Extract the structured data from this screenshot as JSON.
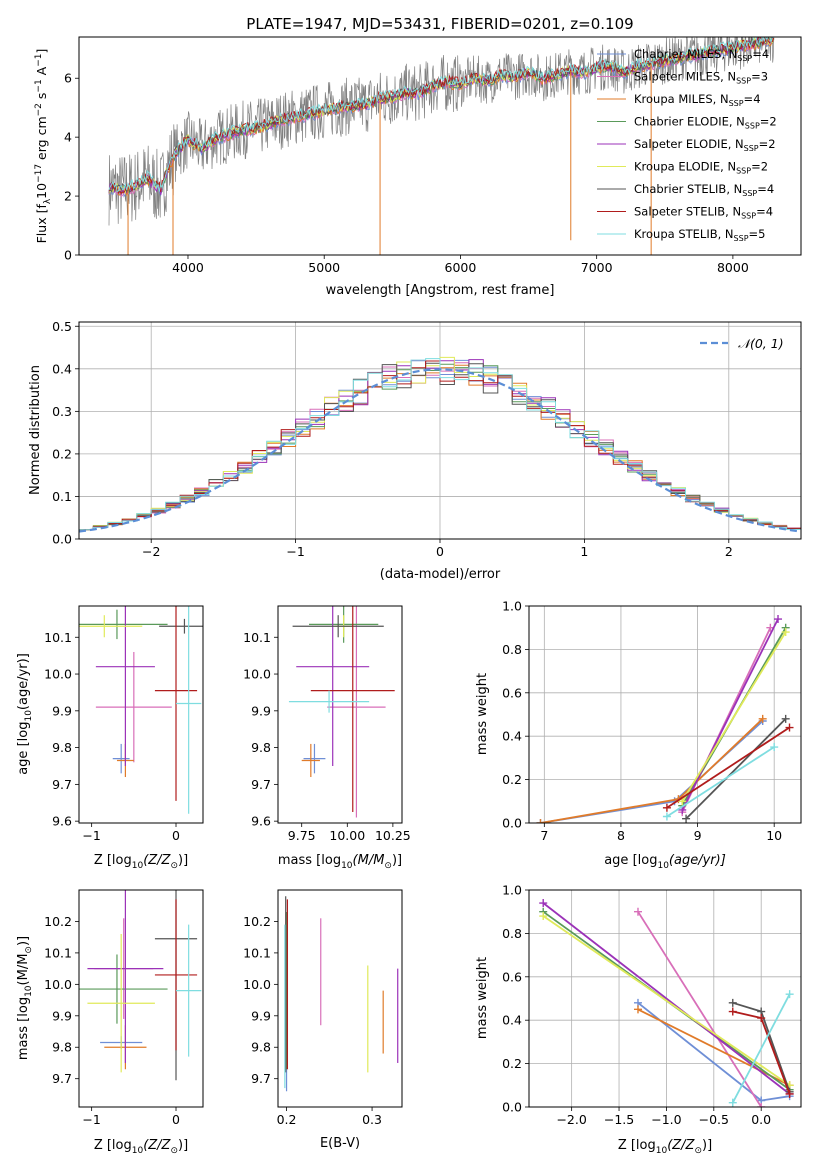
{
  "figure": {
    "title": "PLATE=1947, MJD=53431, FIBERID=0201, z=0.109"
  },
  "series_legend": [
    {
      "name": "Chabrier MILES",
      "nssp": "4",
      "color": "#6f8fd6"
    },
    {
      "name": "Salpeter MILES",
      "nssp": "3",
      "color": "#d86fb9"
    },
    {
      "name": "Kroupa MILES",
      "nssp": "4",
      "color": "#e07b2a"
    },
    {
      "name": "Chabrier ELODIE",
      "nssp": "2",
      "color": "#5a9a5a"
    },
    {
      "name": "Salpeter ELODIE",
      "nssp": "2",
      "color": "#9b32b8"
    },
    {
      "name": "Kroupa ELODIE",
      "nssp": "2",
      "color": "#e0ea5a"
    },
    {
      "name": "Chabrier STELIB",
      "nssp": "4",
      "color": "#555555"
    },
    {
      "name": "Salpeter STELIB",
      "nssp": "4",
      "color": "#b01c1c"
    },
    {
      "name": "Kroupa STELIB",
      "nssp": "5",
      "color": "#7fdde0"
    }
  ],
  "chart_data": [
    {
      "type": "line",
      "id": "spectrum",
      "xlabel": "wavelength [Angstrom, rest frame]",
      "ylabel_main": "Flux [f",
      "ylabel_sub": "λ",
      "ylabel_rest": "10",
      "ylabel_exp1": "−17",
      "ylabel_mid": " erg cm",
      "ylabel_exp2": "−2",
      "ylabel_mid2": " s",
      "ylabel_exp3": "−1",
      "ylabel_end": " A",
      "ylabel_exp4": "−1",
      "ylabel_close": "]",
      "xlim": [
        3200,
        8500
      ],
      "ylim": [
        0,
        7.4
      ],
      "xticks": [
        4000,
        5000,
        6000,
        7000,
        8000
      ],
      "yticks": [
        0,
        2,
        4,
        6
      ],
      "data_color": "#808080",
      "continuum": {
        "x": [
          3420,
          3500,
          3600,
          3700,
          3800,
          3850,
          3900,
          4000,
          4100,
          4200,
          4300,
          4400,
          4500,
          4600,
          4700,
          4800,
          4900,
          5000,
          5100,
          5200,
          5300,
          5400,
          5500,
          5600,
          5700,
          5800,
          5900,
          6000,
          6100,
          6200,
          6300,
          6400,
          6500,
          6600,
          6700,
          6800,
          6900,
          7000,
          7100,
          7200,
          7300,
          7400
        ],
        "y": [
          2.3,
          2.2,
          2.3,
          2.6,
          2.2,
          2.9,
          3.4,
          3.9,
          3.6,
          3.95,
          4.1,
          4.25,
          4.3,
          4.45,
          4.6,
          4.7,
          4.8,
          4.9,
          5.0,
          5.05,
          5.1,
          5.3,
          5.35,
          5.5,
          5.5,
          5.75,
          5.85,
          5.8,
          6.0,
          5.9,
          6.1,
          6.05,
          6.2,
          6.0,
          6.1,
          6.25,
          6.2,
          6.35,
          6.4,
          6.2,
          6.4,
          6.5
        ]
      },
      "legend_position": "upper-right"
    },
    {
      "type": "bar",
      "id": "residual-histogram",
      "xlabel": "(data-model)/error",
      "ylabel": "Normed distribution",
      "xlim": [
        -2.5,
        2.5
      ],
      "ylim": [
        0,
        0.51
      ],
      "xticks": [
        -2,
        -1,
        0,
        1,
        2
      ],
      "yticks": [
        0.0,
        0.1,
        0.2,
        0.3,
        0.4,
        0.5
      ],
      "bin_width": 0.1,
      "grid": true,
      "legend": {
        "label": "𝒩(0, 1)",
        "color": "#5b8ed6",
        "position": "upper-right"
      }
    },
    {
      "type": "scatter",
      "id": "age-vs-metallicity",
      "xlabel": "Z [log",
      "xlabel_sub": "10",
      "xlabel_tail": "(Z/Z",
      "xlabel_sun": "⊙",
      "xlabel_end": ")]",
      "ylabel": "age  [log",
      "ylabel_sub": "10",
      "ylabel_tail": "(age/yr)]",
      "xlim": [
        -1.15,
        0.32
      ],
      "ylim": [
        9.595,
        10.185
      ],
      "xticks": [
        -1,
        0
      ],
      "yticks": [
        9.6,
        9.7,
        9.8,
        9.9,
        10.0,
        10.1
      ],
      "points": [
        {
          "x": -0.65,
          "y": 9.77,
          "xerr": 0.1,
          "yerr": 0.04,
          "color": "#6f8fd6"
        },
        {
          "x": -0.5,
          "y": 9.91,
          "xerr": 0.45,
          "yerr": 0.15,
          "color": "#d86fb9"
        },
        {
          "x": -0.6,
          "y": 9.765,
          "xerr": 0.1,
          "yerr": 0.045,
          "color": "#e07b2a"
        },
        {
          "x": -0.7,
          "y": 10.135,
          "xerr": 0.6,
          "yerr": 0.04,
          "color": "#5a9a5a"
        },
        {
          "x": -0.6,
          "y": 10.02,
          "xerr": 0.35,
          "yerr": 0.27,
          "color": "#9b32b8"
        },
        {
          "x": -0.85,
          "y": 10.13,
          "xerr": 0.45,
          "yerr": 0.03,
          "color": "#e0ea5a"
        },
        {
          "x": 0.1,
          "y": 10.13,
          "xerr": 0.3,
          "yerr": 0.02,
          "color": "#555555"
        },
        {
          "x": 0.0,
          "y": 9.955,
          "xerr": 0.25,
          "yerr": 0.3,
          "color": "#b01c1c"
        },
        {
          "x": 0.15,
          "y": 9.92,
          "xerr": 0.15,
          "yerr": 0.3,
          "color": "#7fdde0"
        }
      ]
    },
    {
      "type": "scatter",
      "id": "age-vs-mass",
      "xlabel": "mass [log",
      "xlabel_sub": "10",
      "xlabel_tail": "(M/M",
      "xlabel_sun": "⊙",
      "xlabel_end": ")]",
      "xlim": [
        9.62,
        10.3
      ],
      "ylim": [
        9.595,
        10.185
      ],
      "xticks": [
        9.75,
        10.0,
        10.25
      ],
      "xticklabels": [
        "9.75",
        "10.00",
        "10.25"
      ],
      "yticks": [
        9.6,
        9.7,
        9.8,
        9.9,
        10.0,
        10.1
      ],
      "points": [
        {
          "x": 9.82,
          "y": 9.77,
          "xerr": 0.06,
          "yerr": 0.04,
          "color": "#6f8fd6"
        },
        {
          "x": 10.05,
          "y": 9.91,
          "xerr": 0.16,
          "yerr": 0.3,
          "color": "#d86fb9"
        },
        {
          "x": 9.8,
          "y": 9.765,
          "xerr": 0.05,
          "yerr": 0.045,
          "color": "#e07b2a"
        },
        {
          "x": 9.98,
          "y": 10.135,
          "xerr": 0.19,
          "yerr": 0.05,
          "color": "#5a9a5a"
        },
        {
          "x": 9.92,
          "y": 10.02,
          "xerr": 0.2,
          "yerr": 0.27,
          "color": "#9b32b8"
        },
        {
          "x": 9.98,
          "y": 10.13,
          "xerr": 0.05,
          "yerr": 0.03,
          "color": "#e0ea5a"
        },
        {
          "x": 9.95,
          "y": 10.13,
          "xerr": 0.25,
          "yerr": 0.03,
          "color": "#555555"
        },
        {
          "x": 10.03,
          "y": 9.955,
          "xerr": 0.23,
          "yerr": 0.33,
          "color": "#b01c1c"
        },
        {
          "x": 9.9,
          "y": 9.925,
          "xerr": 0.22,
          "yerr": 0.03,
          "color": "#7fdde0"
        }
      ]
    },
    {
      "type": "line",
      "id": "mass-weight-vs-age",
      "xlabel": "age  [log",
      "xlabel_sub": "10",
      "xlabel_tail": "(age/yr)]",
      "ylabel": "mass weight",
      "xlim": [
        6.8,
        10.35
      ],
      "ylim": [
        0,
        1.0
      ],
      "xticks": [
        7,
        8,
        9,
        10
      ],
      "yticks": [
        0.0,
        0.2,
        0.4,
        0.6,
        0.8,
        1.0
      ],
      "grid": true,
      "series": [
        {
          "color": "#6f8fd6",
          "x": [
            6.95,
            8.7,
            9.85
          ],
          "y": [
            0.0,
            0.1,
            0.47
          ]
        },
        {
          "color": "#d86fb9",
          "x": [
            8.8,
            9.95
          ],
          "y": [
            0.05,
            0.9
          ]
        },
        {
          "color": "#e07b2a",
          "x": [
            6.95,
            8.75,
            9.85
          ],
          "y": [
            0.0,
            0.11,
            0.48
          ]
        },
        {
          "color": "#5a9a5a",
          "x": [
            8.8,
            10.15
          ],
          "y": [
            0.08,
            0.9
          ]
        },
        {
          "color": "#9b32b8",
          "x": [
            8.8,
            10.05
          ],
          "y": [
            0.06,
            0.94
          ]
        },
        {
          "color": "#e0ea5a",
          "x": [
            8.8,
            10.15
          ],
          "y": [
            0.1,
            0.88
          ]
        },
        {
          "color": "#555555",
          "x": [
            8.85,
            10.15
          ],
          "y": [
            0.02,
            0.48
          ]
        },
        {
          "color": "#b01c1c",
          "x": [
            8.6,
            10.2
          ],
          "y": [
            0.07,
            0.44
          ]
        },
        {
          "color": "#7fdde0",
          "x": [
            8.6,
            10.0
          ],
          "y": [
            0.03,
            0.35
          ]
        }
      ]
    },
    {
      "type": "scatter",
      "id": "mass-vs-metallicity",
      "xlabel": "Z [log",
      "xlabel_sub": "10",
      "xlabel_tail": "(Z/Z",
      "xlabel_sun": "⊙",
      "xlabel_end": ")]",
      "ylabel": "mass [log",
      "ylabel_sub": "10",
      "ylabel_tail": "(M/M",
      "ylabel_sun": "⊙",
      "ylabel_end": ")]",
      "xlim": [
        -1.15,
        0.32
      ],
      "ylim": [
        9.61,
        10.3
      ],
      "xticks": [
        -1,
        0
      ],
      "yticks": [
        9.7,
        9.8,
        9.9,
        10.0,
        10.1,
        10.2
      ],
      "points": [
        {
          "x": -0.65,
          "y": 9.815,
          "xerr": 0.25,
          "yerr": 0.02,
          "color": "#6f8fd6"
        },
        {
          "x": -0.62,
          "y": 10.05,
          "xerr": 0.35,
          "yerr": 0.16,
          "color": "#d86fb9"
        },
        {
          "x": -0.6,
          "y": 9.8,
          "xerr": 0.25,
          "yerr": 0.07,
          "color": "#e07b2a"
        },
        {
          "x": -0.7,
          "y": 9.985,
          "xerr": 0.6,
          "yerr": 0.11,
          "color": "#5a9a5a"
        },
        {
          "x": -0.6,
          "y": 10.05,
          "xerr": 0.45,
          "yerr": 0.3,
          "color": "#9b32b8"
        },
        {
          "x": -0.65,
          "y": 9.94,
          "xerr": 0.4,
          "yerr": 0.22,
          "color": "#e0ea5a"
        },
        {
          "x": 0.0,
          "y": 10.145,
          "xerr": 0.25,
          "yerr": 0.45,
          "color": "#555555"
        },
        {
          "x": 0.0,
          "y": 10.03,
          "xerr": 0.25,
          "yerr": 0.24,
          "color": "#b01c1c"
        },
        {
          "x": 0.15,
          "y": 9.98,
          "xerr": 0.15,
          "yerr": 0.21,
          "color": "#7fdde0"
        }
      ]
    },
    {
      "type": "scatter",
      "id": "mass-vs-extinction",
      "xlabel": "E(B-V)",
      "xlim": [
        0.19,
        0.335
      ],
      "ylim": [
        9.61,
        10.3
      ],
      "xticks": [
        0.2,
        0.3
      ],
      "xticklabels": [
        "0.2",
        "0.3"
      ],
      "yticks": [
        9.7,
        9.8,
        9.9,
        10.0,
        10.1,
        10.2
      ],
      "points": [
        {
          "x": 0.2,
          "y": 9.94,
          "yerr": 0.28,
          "color": "#6f8fd6"
        },
        {
          "x": 0.24,
          "y": 10.04,
          "yerr": 0.17,
          "color": "#d86fb9"
        },
        {
          "x": 0.313,
          "y": 9.88,
          "yerr": 0.1,
          "color": "#e07b2a"
        },
        {
          "x": 0.2,
          "y": 9.98,
          "yerr": 0.25,
          "color": "#5a9a5a"
        },
        {
          "x": 0.33,
          "y": 9.9,
          "yerr": 0.15,
          "color": "#9b32b8"
        },
        {
          "x": 0.295,
          "y": 9.89,
          "yerr": 0.17,
          "color": "#e0ea5a"
        },
        {
          "x": 0.199,
          "y": 10.0,
          "yerr": 0.28,
          "color": "#555555"
        },
        {
          "x": 0.201,
          "y": 10.0,
          "yerr": 0.27,
          "color": "#b01c1c"
        },
        {
          "x": 0.198,
          "y": 9.93,
          "yerr": 0.26,
          "color": "#7fdde0"
        }
      ]
    },
    {
      "type": "line",
      "id": "mass-weight-vs-metallicity",
      "xlabel": "Z [log",
      "xlabel_sub": "10",
      "xlabel_tail": "(Z/Z",
      "xlabel_sun": "⊙",
      "xlabel_end": ")]",
      "ylabel": "mass weight",
      "xlim": [
        -2.45,
        0.42
      ],
      "ylim": [
        0,
        1.0
      ],
      "xticks": [
        -2.0,
        -1.5,
        -1.0,
        -0.5,
        0.0
      ],
      "xticklabels": [
        "−2.0",
        "−1.5",
        "−1.0",
        "−0.5",
        "0.0"
      ],
      "yticks": [
        0.0,
        0.2,
        0.4,
        0.6,
        0.8,
        1.0
      ],
      "grid": true,
      "series": [
        {
          "color": "#6f8fd6",
          "x": [
            -1.3,
            0.0,
            0.3
          ],
          "y": [
            0.48,
            0.03,
            0.05
          ]
        },
        {
          "color": "#d86fb9",
          "x": [
            -1.3,
            0.0
          ],
          "y": [
            0.9,
            0.0
          ]
        },
        {
          "color": "#e07b2a",
          "x": [
            -1.3,
            0.3
          ],
          "y": [
            0.45,
            0.1
          ]
        },
        {
          "color": "#5a9a5a",
          "x": [
            -2.3,
            0.3
          ],
          "y": [
            0.9,
            0.08
          ]
        },
        {
          "color": "#9b32b8",
          "x": [
            -2.3,
            0.3
          ],
          "y": [
            0.94,
            0.06
          ]
        },
        {
          "color": "#e0ea5a",
          "x": [
            -2.3,
            0.3
          ],
          "y": [
            0.88,
            0.1
          ]
        },
        {
          "color": "#555555",
          "x": [
            -0.3,
            0.0,
            0.3
          ],
          "y": [
            0.48,
            0.44,
            0.07
          ]
        },
        {
          "color": "#b01c1c",
          "x": [
            -0.3,
            0.0,
            0.3
          ],
          "y": [
            0.44,
            0.41,
            0.06
          ]
        },
        {
          "color": "#7fdde0",
          "x": [
            -0.3,
            0.3
          ],
          "y": [
            0.02,
            0.52
          ]
        }
      ]
    }
  ]
}
